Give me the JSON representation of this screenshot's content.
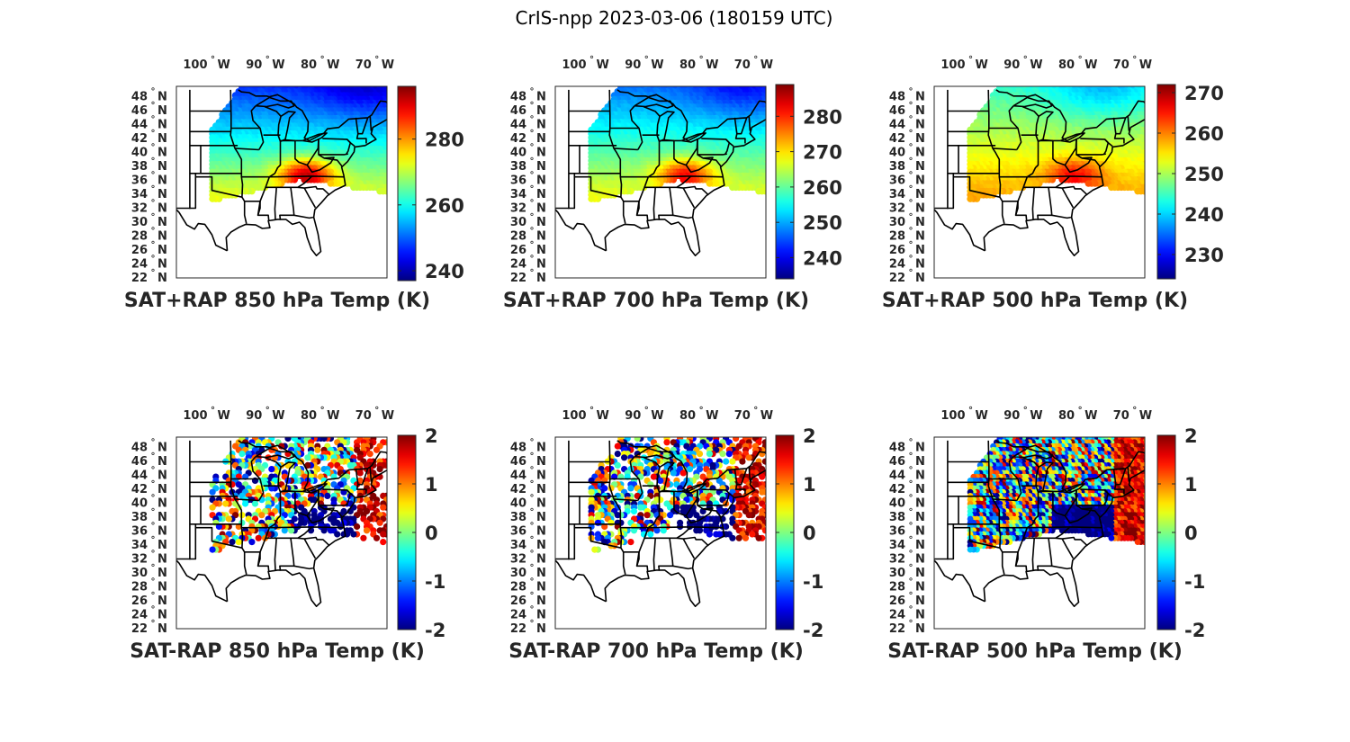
{
  "figure_title": "CrIS-npp 2023-03-06 (180159 UTC)",
  "chart_data": [
    {
      "type": "heatmap",
      "name": "sat-rap-sum-850",
      "title": "SAT+RAP 850 hPa Temp (K)",
      "lon_ticks": [
        100,
        90,
        80,
        70
      ],
      "lon_suffix": "W",
      "lat_ticks": [
        48,
        46,
        44,
        42,
        40,
        38,
        36,
        34,
        32,
        30,
        28,
        26,
        24,
        22
      ],
      "lat_suffix": "N",
      "degree_symbol": "°",
      "xlim": [
        -106.5,
        -68
      ],
      "ylim": [
        22,
        49.5
      ],
      "colorbar": {
        "range": [
          237,
          296
        ],
        "ticks": [
          240,
          260,
          280
        ],
        "colormap": "jet"
      },
      "field": {
        "kind": "abs",
        "warm_center": [
          -83,
          36.5
        ],
        "cold_center": [
          -72,
          49
        ],
        "low": 240,
        "high": 292
      }
    },
    {
      "type": "heatmap",
      "name": "sat-rap-sum-700",
      "title": "SAT+RAP 700 hPa Temp (K)",
      "lon_ticks": [
        100,
        90,
        80,
        70
      ],
      "lon_suffix": "W",
      "lat_ticks": [
        48,
        46,
        44,
        42,
        40,
        38,
        36,
        34,
        32,
        30,
        28,
        26,
        24,
        22
      ],
      "lat_suffix": "N",
      "degree_symbol": "°",
      "xlim": [
        -106.5,
        -68
      ],
      "ylim": [
        22,
        49.5
      ],
      "colorbar": {
        "range": [
          234,
          289
        ],
        "ticks": [
          240,
          250,
          260,
          270,
          280
        ],
        "colormap": "jet"
      },
      "field": {
        "kind": "abs",
        "warm_center": [
          -83,
          36.5
        ],
        "cold_center": [
          -72,
          49
        ],
        "low": 240,
        "high": 282
      }
    },
    {
      "type": "heatmap",
      "name": "sat-rap-sum-500",
      "title": "SAT+RAP 500 hPa Temp (K)",
      "lon_ticks": [
        100,
        90,
        80,
        70
      ],
      "lon_suffix": "W",
      "lat_ticks": [
        48,
        46,
        44,
        42,
        40,
        38,
        36,
        34,
        32,
        30,
        28,
        26,
        24,
        22
      ],
      "lat_suffix": "N",
      "degree_symbol": "°",
      "xlim": [
        -106.5,
        -68
      ],
      "ylim": [
        22,
        49.5
      ],
      "colorbar": {
        "range": [
          224,
          272
        ],
        "ticks": [
          230,
          240,
          250,
          260,
          270
        ],
        "colormap": "jet"
      },
      "field": {
        "kind": "abs",
        "warm_center": [
          -81,
          36.5
        ],
        "cold_center": [
          -76,
          49
        ],
        "low": 238,
        "high": 266
      }
    },
    {
      "type": "heatmap",
      "name": "sat-rap-diff-850",
      "title": "SAT-RAP 850 hPa Temp (K)",
      "lon_ticks": [
        100,
        90,
        80,
        70
      ],
      "lon_suffix": "W",
      "lat_ticks": [
        48,
        46,
        44,
        42,
        40,
        38,
        36,
        34,
        32,
        30,
        28,
        26,
        24,
        22
      ],
      "lat_suffix": "N",
      "degree_symbol": "°",
      "xlim": [
        -106.5,
        -68
      ],
      "ylim": [
        22,
        49.5
      ],
      "colorbar": {
        "range": [
          -2,
          2
        ],
        "ticks": [
          2,
          1,
          0,
          -1,
          -2
        ],
        "colormap": "jet"
      },
      "field": {
        "kind": "diff",
        "sparse": true,
        "seed": 11
      }
    },
    {
      "type": "heatmap",
      "name": "sat-rap-diff-700",
      "title": "SAT-RAP 700 hPa Temp (K)",
      "lon_ticks": [
        100,
        90,
        80,
        70
      ],
      "lon_suffix": "W",
      "lat_ticks": [
        48,
        46,
        44,
        42,
        40,
        38,
        36,
        34,
        32,
        30,
        28,
        26,
        24,
        22
      ],
      "lat_suffix": "N",
      "degree_symbol": "°",
      "xlim": [
        -106.5,
        -68
      ],
      "ylim": [
        22,
        49.5
      ],
      "colorbar": {
        "range": [
          -2,
          2
        ],
        "ticks": [
          2,
          1,
          0,
          -1,
          -2
        ],
        "colormap": "jet"
      },
      "field": {
        "kind": "diff",
        "sparse": true,
        "seed": 23
      }
    },
    {
      "type": "heatmap",
      "name": "sat-rap-diff-500",
      "title": "SAT-RAP 500 hPa Temp (K)",
      "lon_ticks": [
        100,
        90,
        80,
        70
      ],
      "lon_suffix": "W",
      "lat_ticks": [
        48,
        46,
        44,
        42,
        40,
        38,
        36,
        34,
        32,
        30,
        28,
        26,
        24,
        22
      ],
      "lat_suffix": "N",
      "degree_symbol": "°",
      "xlim": [
        -106.5,
        -68
      ],
      "ylim": [
        22,
        49.5
      ],
      "colorbar": {
        "range": [
          -2,
          2
        ],
        "ticks": [
          2,
          1,
          0,
          -1,
          -2
        ],
        "colormap": "jet"
      },
      "field": {
        "kind": "diff",
        "sparse": false,
        "seed": 37
      }
    }
  ]
}
